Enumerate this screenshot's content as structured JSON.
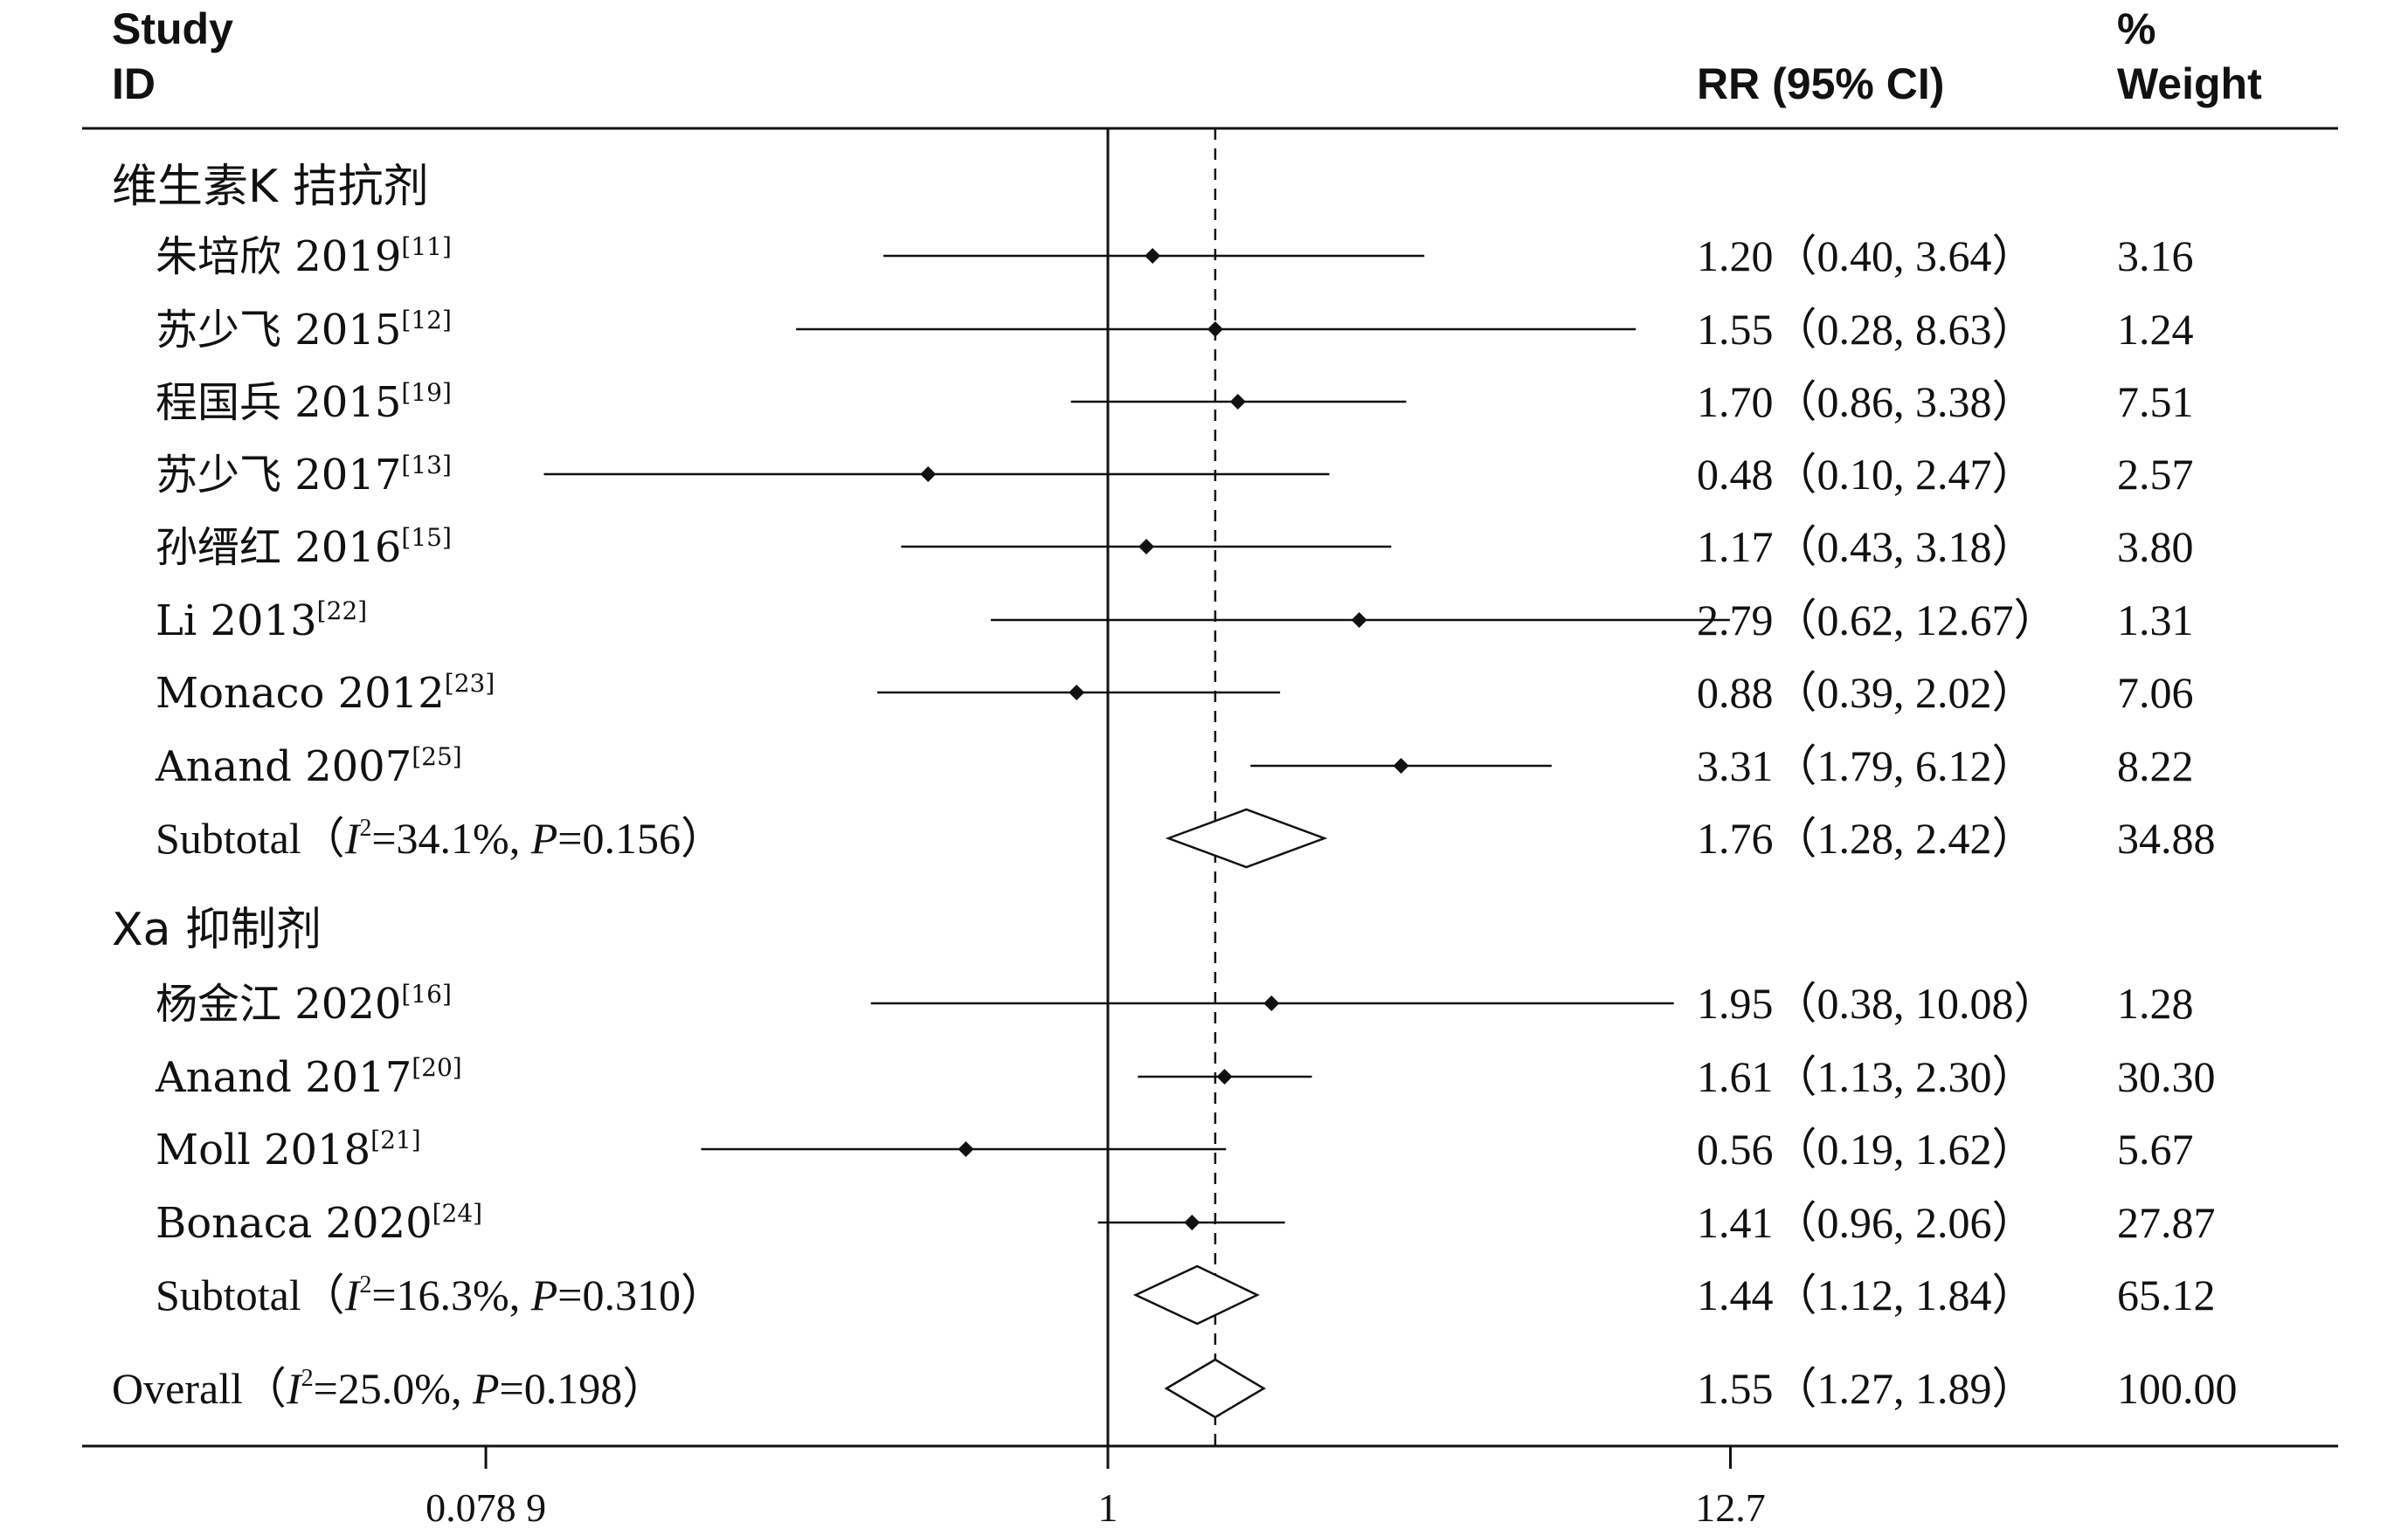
{
  "header": {
    "study": "Study",
    "id": "ID",
    "rr": "RR (95% CI)",
    "pct": "%",
    "weight": "Weight"
  },
  "chart_data": {
    "type": "forest",
    "title": "",
    "xscale": "log",
    "xlim": [
      0.0789,
      12.7
    ],
    "xticks": [
      {
        "value": 0.0789,
        "label": "0.078 9"
      },
      {
        "value": 1,
        "label": "1"
      },
      {
        "value": 12.7,
        "label": "12.7"
      }
    ],
    "null_line": 1,
    "overall_line": 1.55,
    "groups": [
      {
        "title": "维生素K 拮抗剂",
        "studies": [
          {
            "name": "朱培欣 2019",
            "ref": "[11]",
            "rr": 1.2,
            "lo": 0.4,
            "hi": 3.64,
            "ci_text": "1.20（0.40, 3.64）",
            "weight": "3.16"
          },
          {
            "name": "苏少飞 2015",
            "ref": "[12]",
            "rr": 1.55,
            "lo": 0.28,
            "hi": 8.63,
            "ci_text": "1.55（0.28, 8.63）",
            "weight": "1.24"
          },
          {
            "name": "程国兵 2015",
            "ref": "[19]",
            "rr": 1.7,
            "lo": 0.86,
            "hi": 3.38,
            "ci_text": "1.70（0.86, 3.38）",
            "weight": "7.51"
          },
          {
            "name": "苏少飞 2017",
            "ref": "[13]",
            "rr": 0.48,
            "lo": 0.1,
            "hi": 2.47,
            "ci_text": "0.48（0.10, 2.47）",
            "weight": "2.57"
          },
          {
            "name": "孙缙红 2016",
            "ref": "[15]",
            "rr": 1.17,
            "lo": 0.43,
            "hi": 3.18,
            "ci_text": "1.17（0.43, 3.18）",
            "weight": "3.80"
          },
          {
            "name": "Li 2013",
            "ref": "[22]",
            "rr": 2.79,
            "lo": 0.62,
            "hi": 12.67,
            "ci_text": "2.79（0.62, 12.67）",
            "weight": "1.31"
          },
          {
            "name": "Monaco 2012",
            "ref": "[23]",
            "rr": 0.88,
            "lo": 0.39,
            "hi": 2.02,
            "ci_text": "0.88（0.39, 2.02）",
            "weight": "7.06"
          },
          {
            "name": "Anand 2007",
            "ref": "[25]",
            "rr": 3.31,
            "lo": 1.79,
            "hi": 6.12,
            "ci_text": "3.31（1.79, 6.12）",
            "weight": "8.22"
          }
        ],
        "subtotal": {
          "label_pre": "Subtotal（",
          "i_sym": "I",
          "i2": "=34.1%, ",
          "p_sym": "P",
          "p": "=0.156）",
          "rr": 1.76,
          "lo": 1.28,
          "hi": 2.42,
          "ci_text": "1.76（1.28, 2.42）",
          "weight": "34.88"
        }
      },
      {
        "title": "Xa 抑制剂",
        "studies": [
          {
            "name": "杨金江 2020",
            "ref": "[16]",
            "rr": 1.95,
            "lo": 0.38,
            "hi": 10.08,
            "ci_text": "1.95（0.38, 10.08）",
            "weight": "1.28"
          },
          {
            "name": "Anand 2017",
            "ref": "[20]",
            "rr": 1.61,
            "lo": 1.13,
            "hi": 2.3,
            "ci_text": "1.61（1.13, 2.30）",
            "weight": "30.30"
          },
          {
            "name": "Moll 2018",
            "ref": "[21]",
            "rr": 0.56,
            "lo": 0.19,
            "hi": 1.62,
            "ci_text": "0.56（0.19, 1.62）",
            "weight": "5.67"
          },
          {
            "name": "Bonaca 2020",
            "ref": "[24]",
            "rr": 1.41,
            "lo": 0.96,
            "hi": 2.06,
            "ci_text": "1.41（0.96, 2.06）",
            "weight": "27.87"
          }
        ],
        "subtotal": {
          "label_pre": "Subtotal（",
          "i_sym": "I",
          "i2": "=16.3%, ",
          "p_sym": "P",
          "p": "=0.310）",
          "rr": 1.44,
          "lo": 1.12,
          "hi": 1.84,
          "ci_text": "1.44（1.12, 1.84）",
          "weight": "65.12"
        }
      }
    ],
    "overall": {
      "label_pre": "Overall（",
      "i_sym": "I",
      "i2": "=25.0%, ",
      "p_sym": "P",
      "p": "=0.198）",
      "rr": 1.55,
      "lo": 1.27,
      "hi": 1.89,
      "ci_text": "1.55（1.27, 1.89）",
      "weight": "100.00"
    }
  }
}
